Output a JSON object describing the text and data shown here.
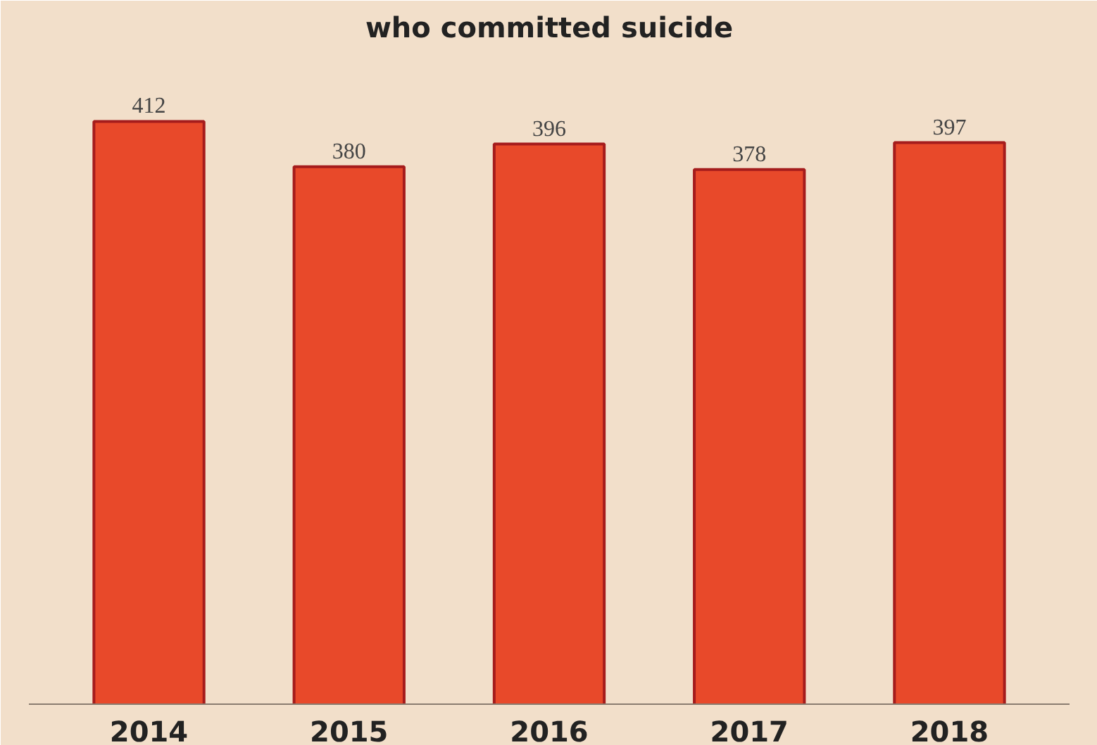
{
  "chart_data": {
    "type": "bar",
    "title": "who committed suicide",
    "categories": [
      "2014",
      "2015",
      "2016",
      "2017",
      "2018"
    ],
    "values": [
      412,
      380,
      396,
      378,
      397
    ],
    "color": "#e8492a",
    "data_labels": true,
    "grid": false
  }
}
